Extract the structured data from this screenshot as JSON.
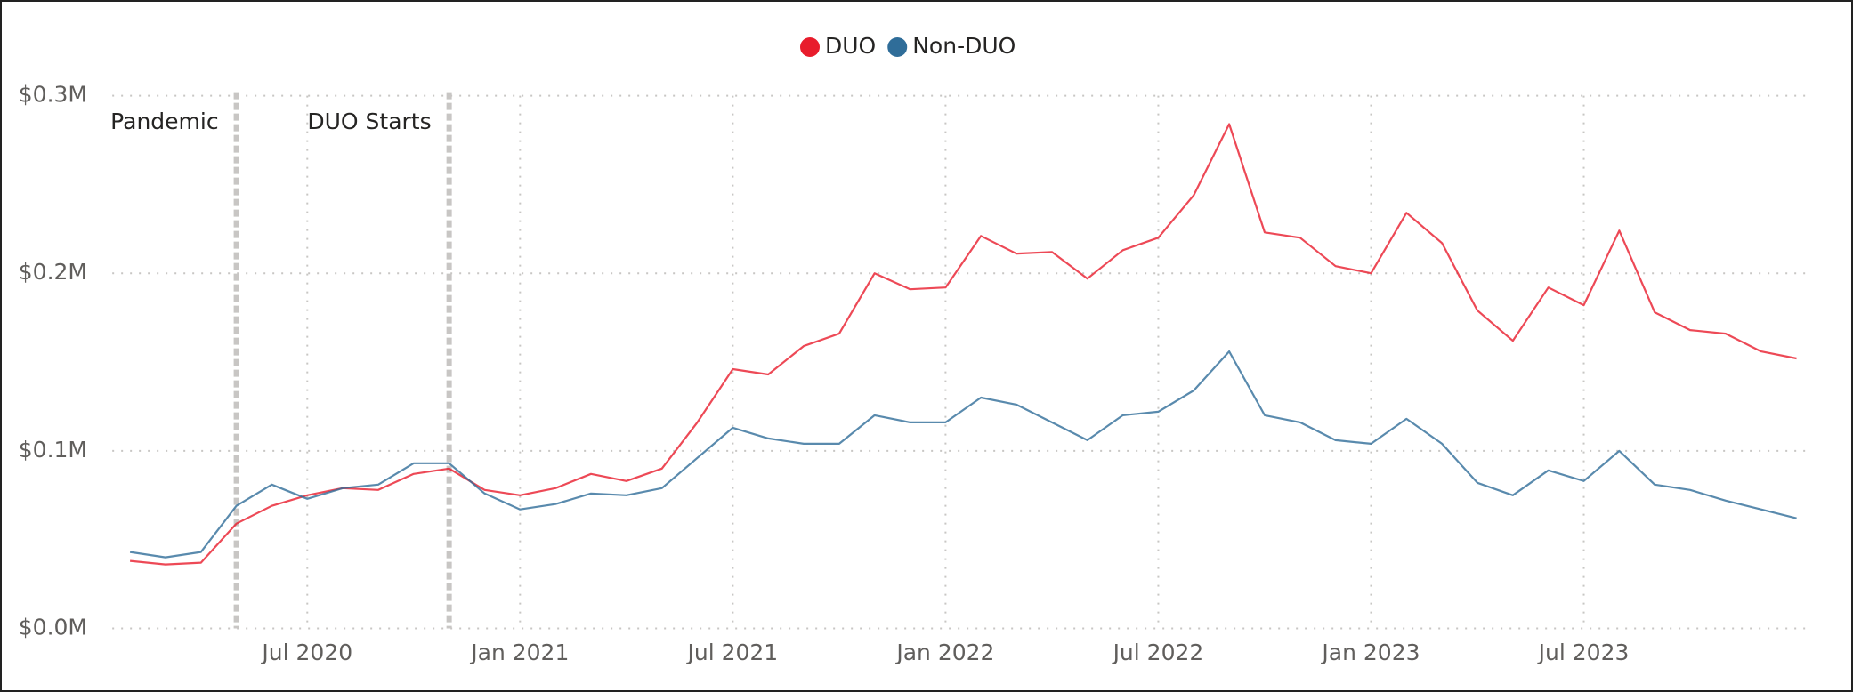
{
  "chart_data": {
    "type": "line",
    "x": [
      "2020-02",
      "2020-03",
      "2020-04",
      "2020-05",
      "2020-06",
      "2020-07",
      "2020-08",
      "2020-09",
      "2020-10",
      "2020-11",
      "2020-12",
      "2021-01",
      "2021-02",
      "2021-03",
      "2021-04",
      "2021-05",
      "2021-06",
      "2021-07",
      "2021-08",
      "2021-09",
      "2021-10",
      "2021-11",
      "2021-12",
      "2022-01",
      "2022-02",
      "2022-03",
      "2022-04",
      "2022-05",
      "2022-06",
      "2022-07",
      "2022-08",
      "2022-09",
      "2022-10",
      "2022-11",
      "2022-12",
      "2023-01",
      "2023-02",
      "2023-03",
      "2023-04",
      "2023-05",
      "2023-06",
      "2023-07",
      "2023-08",
      "2023-09",
      "2023-10",
      "2023-11",
      "2023-12",
      "2024-01"
    ],
    "series": [
      {
        "name": "DUO",
        "color": "#e81c2c",
        "values": [
          38000,
          36000,
          37000,
          59000,
          69000,
          75000,
          79000,
          78000,
          87000,
          90000,
          78000,
          75000,
          79000,
          87000,
          83000,
          90000,
          116000,
          146000,
          143000,
          159000,
          166000,
          200000,
          191000,
          192000,
          221000,
          211000,
          212000,
          197000,
          213000,
          220000,
          244000,
          284000,
          223000,
          220000,
          204000,
          200000,
          234000,
          217000,
          179000,
          162000,
          192000,
          182000,
          224000,
          178000,
          168000,
          166000,
          156000,
          152000
        ]
      },
      {
        "name": "Non-DUO",
        "color": "#2f6d99",
        "values": [
          43000,
          40000,
          43000,
          69000,
          81000,
          73000,
          79000,
          81000,
          93000,
          93000,
          76000,
          67000,
          70000,
          76000,
          75000,
          79000,
          96000,
          113000,
          107000,
          104000,
          104000,
          120000,
          116000,
          116000,
          130000,
          126000,
          116000,
          106000,
          120000,
          122000,
          134000,
          156000,
          120000,
          116000,
          106000,
          104000,
          118000,
          104000,
          82000,
          75000,
          89000,
          83000,
          100000,
          81000,
          78000,
          72000,
          67000,
          62000
        ]
      }
    ],
    "ylim": [
      0,
      300000
    ],
    "yticks": [
      {
        "value": 0,
        "label": "$0.0M"
      },
      {
        "value": 100000,
        "label": "$0.1M"
      },
      {
        "value": 200000,
        "label": "$0.2M"
      },
      {
        "value": 300000,
        "label": "$0.3M"
      }
    ],
    "xticks": [
      {
        "value": "2020-07",
        "label": "Jul 2020"
      },
      {
        "value": "2021-01",
        "label": "Jan 2021"
      },
      {
        "value": "2021-07",
        "label": "Jul 2021"
      },
      {
        "value": "2022-01",
        "label": "Jan 2022"
      },
      {
        "value": "2022-07",
        "label": "Jul 2022"
      },
      {
        "value": "2023-01",
        "label": "Jan 2023"
      },
      {
        "value": "2023-07",
        "label": "Jul 2023"
      }
    ],
    "annotations": [
      {
        "x": "2020-05",
        "label": "Pandemic"
      },
      {
        "x": "2020-11",
        "label": "DUO Starts"
      }
    ],
    "grid": true,
    "legend": "top"
  }
}
